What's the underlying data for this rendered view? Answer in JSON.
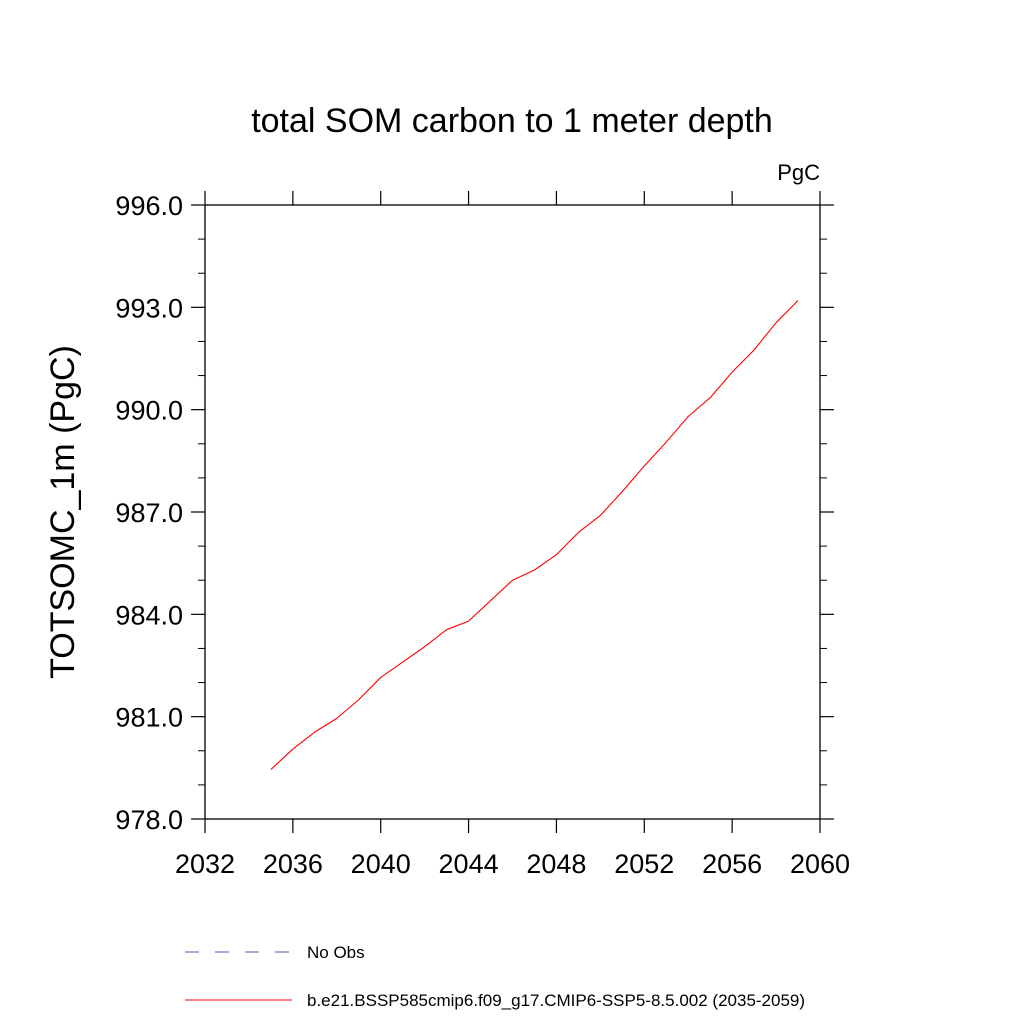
{
  "chart_data": {
    "type": "line",
    "title": "total SOM carbon to 1 meter depth",
    "units_label": "PgC",
    "xlabel": "",
    "ylabel": "TOTSOMC_1m  (PgC)",
    "xlim": [
      2032,
      2060
    ],
    "ylim": [
      978.0,
      996.0
    ],
    "x_ticks": [
      "2032",
      "2036",
      "2040",
      "2044",
      "2048",
      "2052",
      "2056",
      "2060"
    ],
    "y_ticks": [
      "978.0",
      "981.0",
      "984.0",
      "987.0",
      "990.0",
      "993.0",
      "996.0"
    ],
    "grid": false,
    "legend_position": "bottom",
    "series": [
      {
        "name": "b.e21.BSSP585cmip6.f09_g17.CMIP6-SSP5-8.5.002 (2035-2059)",
        "color": "#ff0000",
        "style": "solid",
        "x": [
          2035,
          2036,
          2037,
          2038,
          2039,
          2040,
          2041,
          2042,
          2043,
          2044,
          2045,
          2046,
          2047,
          2048,
          2049,
          2050,
          2051,
          2052,
          2053,
          2054,
          2055,
          2056,
          2057,
          2058,
          2059
        ],
        "y": [
          979.45,
          980.05,
          980.55,
          980.95,
          981.5,
          982.15,
          982.6,
          983.05,
          983.55,
          983.8,
          984.4,
          985.0,
          985.3,
          985.75,
          986.4,
          986.9,
          987.6,
          988.35,
          989.05,
          989.8,
          990.35,
          991.1,
          991.75,
          992.55,
          993.2
        ]
      }
    ],
    "legend": [
      {
        "label": "No Obs",
        "color": "#5b4fb0",
        "style": "dashed"
      },
      {
        "label": "b.e21.BSSP585cmip6.f09_g17.CMIP6-SSP5-8.5.002 (2035-2059)",
        "color": "#ff0000",
        "style": "solid"
      }
    ]
  }
}
